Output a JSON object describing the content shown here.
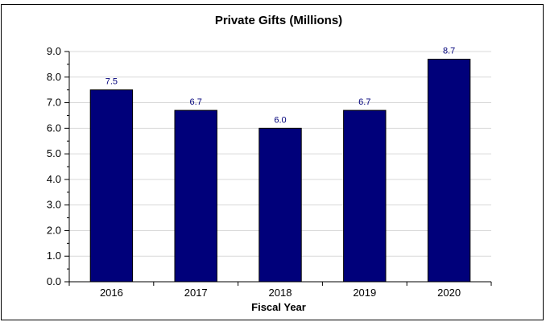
{
  "chart_data": {
    "type": "bar",
    "title": "Private Gifts (Millions)",
    "xlabel": "Fiscal Year",
    "ylabel": "",
    "categories": [
      "2016",
      "2017",
      "2018",
      "2019",
      "2020"
    ],
    "values": [
      7.5,
      6.7,
      6.0,
      6.7,
      8.7
    ],
    "value_labels": [
      "7.5",
      "6.7",
      "6.0",
      "6.7",
      "8.7"
    ],
    "ylim": [
      0,
      9
    ],
    "yticks": [
      0,
      1,
      2,
      3,
      4,
      5,
      6,
      7,
      8,
      9
    ],
    "ytick_labels": [
      "0.0",
      "1.0",
      "2.0",
      "3.0",
      "4.0",
      "5.0",
      "6.0",
      "7.0",
      "8.0",
      "9.0"
    ],
    "grid": true,
    "colors": {
      "bar": "#00007a",
      "bar_stroke": "#000000",
      "value_label": "#00007a",
      "grid": "#d9d9d9"
    }
  }
}
